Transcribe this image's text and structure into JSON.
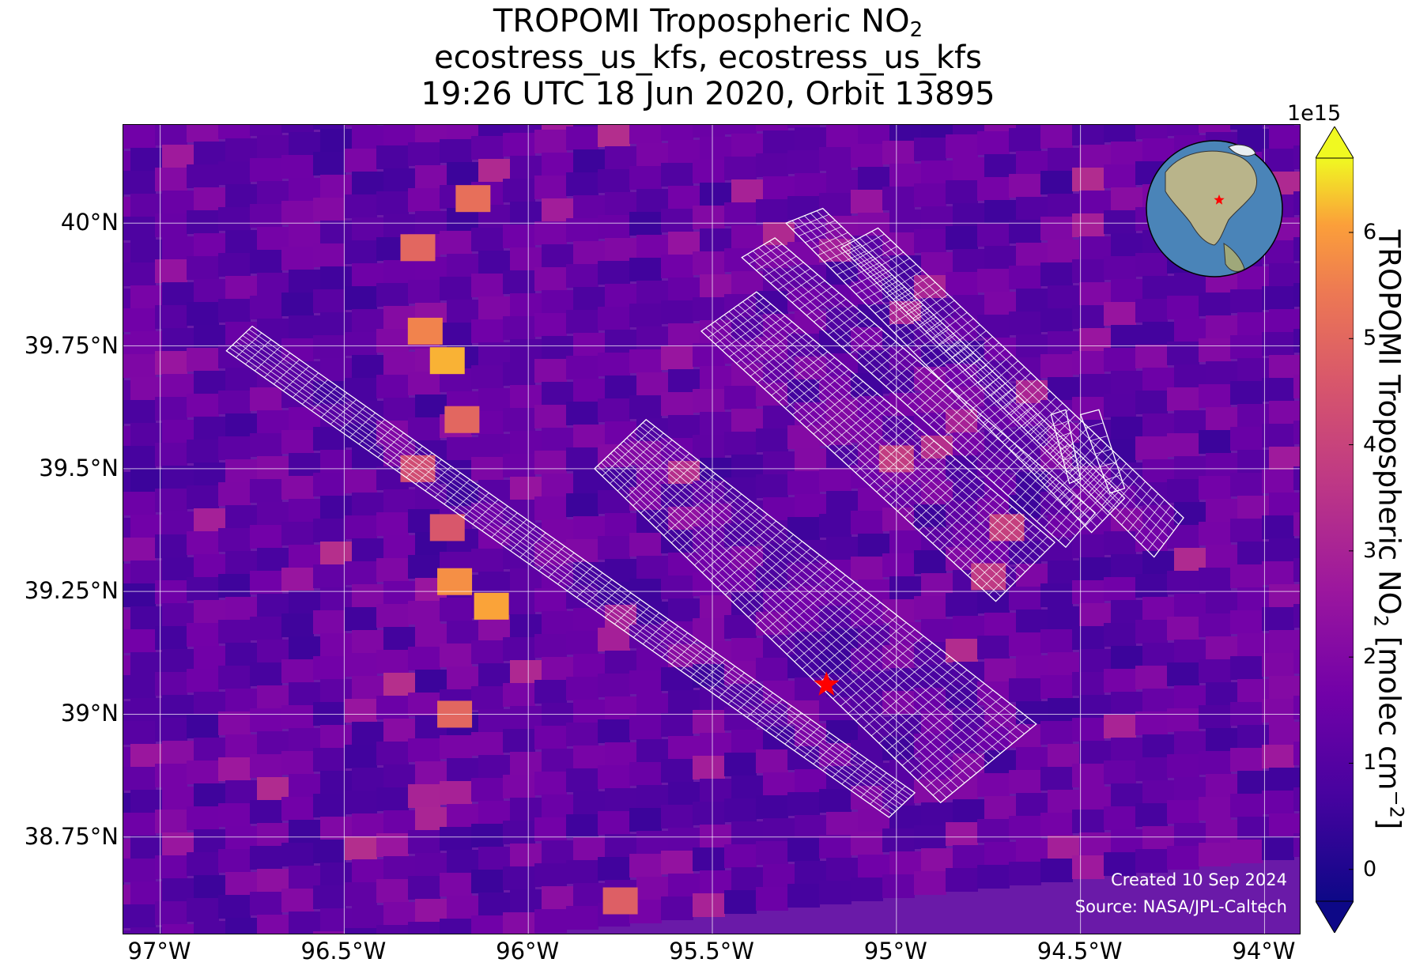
{
  "title": {
    "line1_prefix": "TROPOMI Tropospheric NO",
    "line1_subscript": "2",
    "line2": "ecostress_us_kfs, ecostress_us_kfs",
    "line3": "19:26 UTC 18 Jun 2020, Orbit 13895"
  },
  "map": {
    "extent": {
      "lon_min": -97.1,
      "lon_max": -93.9,
      "lat_min": 38.55,
      "lat_max": 40.2
    },
    "lat_ticks": [
      {
        "value": 40.0,
        "label": "40°N"
      },
      {
        "value": 39.75,
        "label": "39.75°N"
      },
      {
        "value": 39.5,
        "label": "39.5°N"
      },
      {
        "value": 39.25,
        "label": "39.25°N"
      },
      {
        "value": 39.0,
        "label": "39°N"
      },
      {
        "value": 38.75,
        "label": "38.75°N"
      }
    ],
    "lon_ticks": [
      {
        "value": -97.0,
        "label": "97°W"
      },
      {
        "value": -96.5,
        "label": "96.5°W"
      },
      {
        "value": -96.0,
        "label": "96°W"
      },
      {
        "value": -95.5,
        "label": "95.5°W"
      },
      {
        "value": -95.0,
        "label": "95°W"
      },
      {
        "value": -94.5,
        "label": "94.5°W"
      },
      {
        "value": -94.0,
        "label": "94°W"
      }
    ],
    "gridlines": true,
    "marker": {
      "type": "red-star",
      "lon": -95.19,
      "lat": 39.06
    },
    "hotspots": [
      {
        "lon": -96.3,
        "lat": 39.95,
        "value": 5.0
      },
      {
        "lon": -96.15,
        "lat": 40.05,
        "value": 5.2
      },
      {
        "lon": -96.28,
        "lat": 39.78,
        "value": 5.6
      },
      {
        "lon": -96.22,
        "lat": 39.72,
        "value": 6.2
      },
      {
        "lon": -96.18,
        "lat": 39.6,
        "value": 5.0
      },
      {
        "lon": -96.3,
        "lat": 39.5,
        "value": 4.3
      },
      {
        "lon": -96.22,
        "lat": 39.38,
        "value": 4.6
      },
      {
        "lon": -96.2,
        "lat": 39.27,
        "value": 5.8
      },
      {
        "lon": -96.1,
        "lat": 39.22,
        "value": 6.1
      },
      {
        "lon": -96.2,
        "lat": 39.0,
        "value": 5.0
      },
      {
        "lon": -95.75,
        "lat": 38.62,
        "value": 4.8
      },
      {
        "lon": -95.0,
        "lat": 39.52,
        "value": 3.8
      },
      {
        "lon": -94.7,
        "lat": 39.38,
        "value": 3.9
      },
      {
        "lon": -94.75,
        "lat": 39.28,
        "value": 3.7
      }
    ],
    "swaths": [
      {
        "corners": [
          [
            -96.82,
            39.74
          ],
          [
            -96.75,
            39.79
          ],
          [
            -94.95,
            38.84
          ],
          [
            -95.02,
            38.79
          ]
        ],
        "rows": 70,
        "cols": 8
      },
      {
        "corners": [
          [
            -95.82,
            39.5
          ],
          [
            -95.68,
            39.6
          ],
          [
            -94.62,
            38.98
          ],
          [
            -94.88,
            38.82
          ]
        ],
        "rows": 45,
        "cols": 16
      },
      {
        "corners": [
          [
            -95.53,
            39.78
          ],
          [
            -95.38,
            39.86
          ],
          [
            -94.57,
            39.35
          ],
          [
            -94.73,
            39.23
          ]
        ],
        "rows": 42,
        "cols": 12
      },
      {
        "corners": [
          [
            -95.42,
            39.93
          ],
          [
            -95.33,
            39.97
          ],
          [
            -94.46,
            39.41
          ],
          [
            -94.54,
            39.34
          ]
        ],
        "rows": 45,
        "cols": 6
      },
      {
        "corners": [
          [
            -95.3,
            40.0
          ],
          [
            -95.2,
            40.03
          ],
          [
            -94.38,
            39.44
          ],
          [
            -94.47,
            39.37
          ]
        ],
        "rows": 48,
        "cols": 6
      },
      {
        "corners": [
          [
            -95.15,
            39.95
          ],
          [
            -95.05,
            39.99
          ],
          [
            -94.22,
            39.4
          ],
          [
            -94.3,
            39.32
          ]
        ],
        "rows": 48,
        "cols": 6
      },
      {
        "corners": [
          [
            -94.58,
            39.61
          ],
          [
            -94.54,
            39.62
          ],
          [
            -94.5,
            39.48
          ],
          [
            -94.53,
            39.47
          ]
        ],
        "rows": 6,
        "cols": 1
      },
      {
        "corners": [
          [
            -94.5,
            39.61
          ],
          [
            -94.45,
            39.62
          ],
          [
            -94.38,
            39.46
          ],
          [
            -94.42,
            39.45
          ]
        ],
        "rows": 6,
        "cols": 1
      }
    ],
    "globe_inset": {
      "content": "orthographic globe centered on North America",
      "marker": "red-star"
    }
  },
  "credits": {
    "created": "Created 10 Sep 2024",
    "source": "Source: NASA/JPL-Caltech"
  },
  "colorbar": {
    "colormap": "plasma",
    "min": -0.3,
    "max": 6.7,
    "extend": "both",
    "exponent_label": "1e15",
    "ticks": [
      0,
      1,
      2,
      3,
      4,
      5,
      6
    ],
    "title_prefix": "TROPOMI Tropospheric NO",
    "title_subscript": "2",
    "title_units_prefix": " [molec cm",
    "title_units_superscript": "−2",
    "title_units_suffix": "]"
  }
}
